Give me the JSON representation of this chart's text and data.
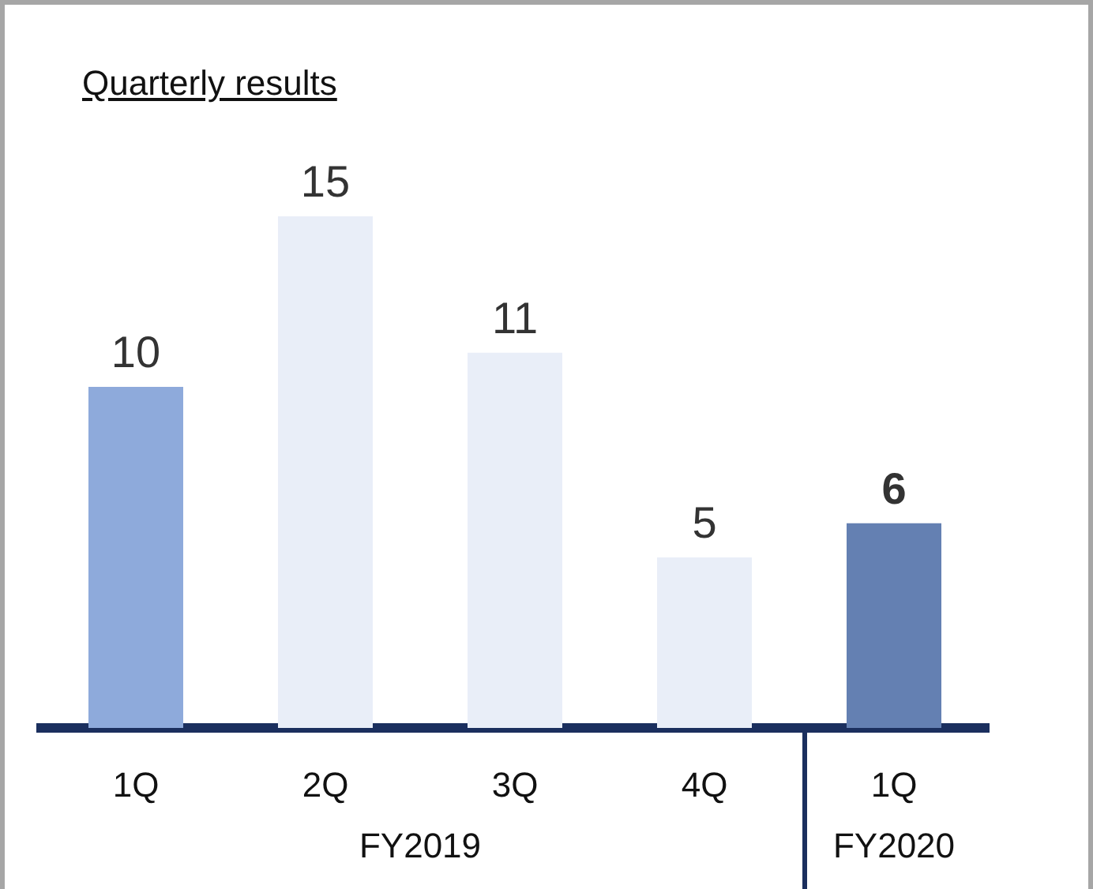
{
  "chart_data": {
    "type": "bar",
    "title": "Quarterly results",
    "categories": [
      "1Q",
      "2Q",
      "3Q",
      "4Q",
      "1Q"
    ],
    "values": [
      10,
      15,
      11,
      5,
      6
    ],
    "colors": [
      "#8eaadb",
      "#e9eef8",
      "#e9eef8",
      "#e9eef8",
      "#6480b2"
    ],
    "data_labels": true,
    "annotations": [
      "FY2019",
      "FY2020"
    ]
  }
}
